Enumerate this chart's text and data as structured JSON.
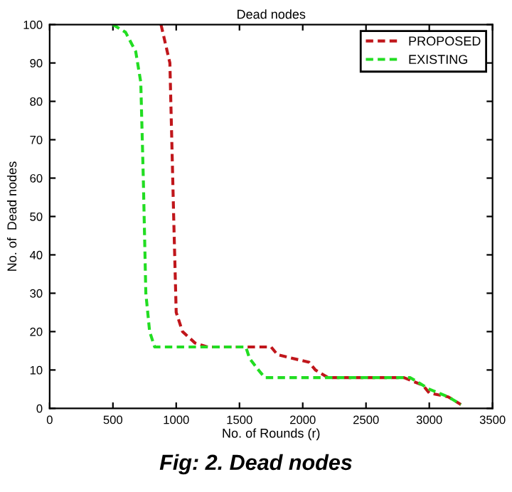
{
  "chart_data": {
    "type": "line",
    "title": "Dead nodes",
    "xlabel": "No. of Rounds (r)",
    "ylabel": "No. of  Dead nodes",
    "series": [
      {
        "name": "PROPOSED",
        "color": "#c0161b",
        "x": [
          880,
          950,
          980,
          1000,
          1050,
          1150,
          1250,
          1750,
          1800,
          2050,
          2100,
          2200,
          2800,
          2950,
          3000,
          3150,
          3250
        ],
        "values": [
          100,
          90,
          50,
          25,
          20,
          17,
          16,
          16,
          14,
          12,
          10,
          8,
          8,
          6,
          4,
          3,
          1
        ]
      },
      {
        "name": "EXISTING",
        "color": "#22dd22",
        "x": [
          500,
          600,
          680,
          720,
          740,
          760,
          790,
          830,
          1550,
          1580,
          1650,
          1700,
          2850,
          2900,
          3000,
          3150,
          3250
        ],
        "values": [
          100,
          98,
          93,
          85,
          60,
          30,
          20,
          16,
          16,
          13,
          10,
          8,
          8,
          7,
          5,
          3,
          1
        ]
      }
    ],
    "xlim": [
      0,
      3500
    ],
    "xticks": [
      0,
      500,
      1000,
      1500,
      2000,
      2500,
      3000,
      3500
    ],
    "ylim": [
      0,
      100
    ],
    "yticks": [
      0,
      10,
      20,
      30,
      40,
      50,
      60,
      70,
      80,
      90,
      100
    ],
    "legend": "top right",
    "line_style": "dashed",
    "grid": false,
    "annotations": [
      "Fig: 2. Dead nodes"
    ]
  }
}
